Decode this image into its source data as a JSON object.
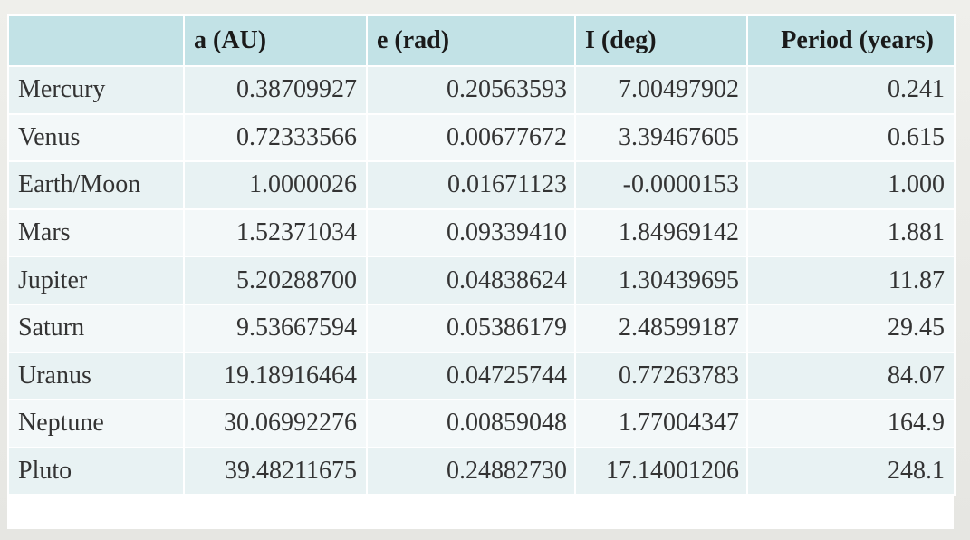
{
  "table": {
    "headers": [
      "",
      "a (AU)",
      "e (rad)",
      "I (deg)",
      "Period (years)"
    ],
    "rows": [
      {
        "name": "Mercury",
        "a": "0.38709927",
        "e": "0.20563593",
        "i": "7.00497902",
        "period": "0.241"
      },
      {
        "name": "Venus",
        "a": "0.72333566",
        "e": "0.00677672",
        "i": "3.39467605",
        "period": "0.615"
      },
      {
        "name": "Earth/Moon",
        "a": "1.0000026",
        "e": "0.01671123",
        "i": "-0.0000153",
        "period": "1.000"
      },
      {
        "name": "Mars",
        "a": "1.52371034",
        "e": "0.09339410",
        "i": "1.84969142",
        "period": "1.881"
      },
      {
        "name": "Jupiter",
        "a": "5.20288700",
        "e": "0.04838624",
        "i": "1.30439695",
        "period": "11.87"
      },
      {
        "name": "Saturn",
        "a": "9.53667594",
        "e": "0.05386179",
        "i": "2.48599187",
        "period": "29.45"
      },
      {
        "name": "Uranus",
        "a": "19.18916464",
        "e": "0.04725744",
        "i": "0.77263783",
        "period": "84.07"
      },
      {
        "name": "Neptune",
        "a": "30.06992276",
        "e": "0.00859048",
        "i": "1.77004347",
        "period": "164.9"
      },
      {
        "name": "Pluto",
        "a": "39.48211675",
        "e": "0.24882730",
        "i": "17.14001206",
        "period": "248.1"
      }
    ]
  }
}
